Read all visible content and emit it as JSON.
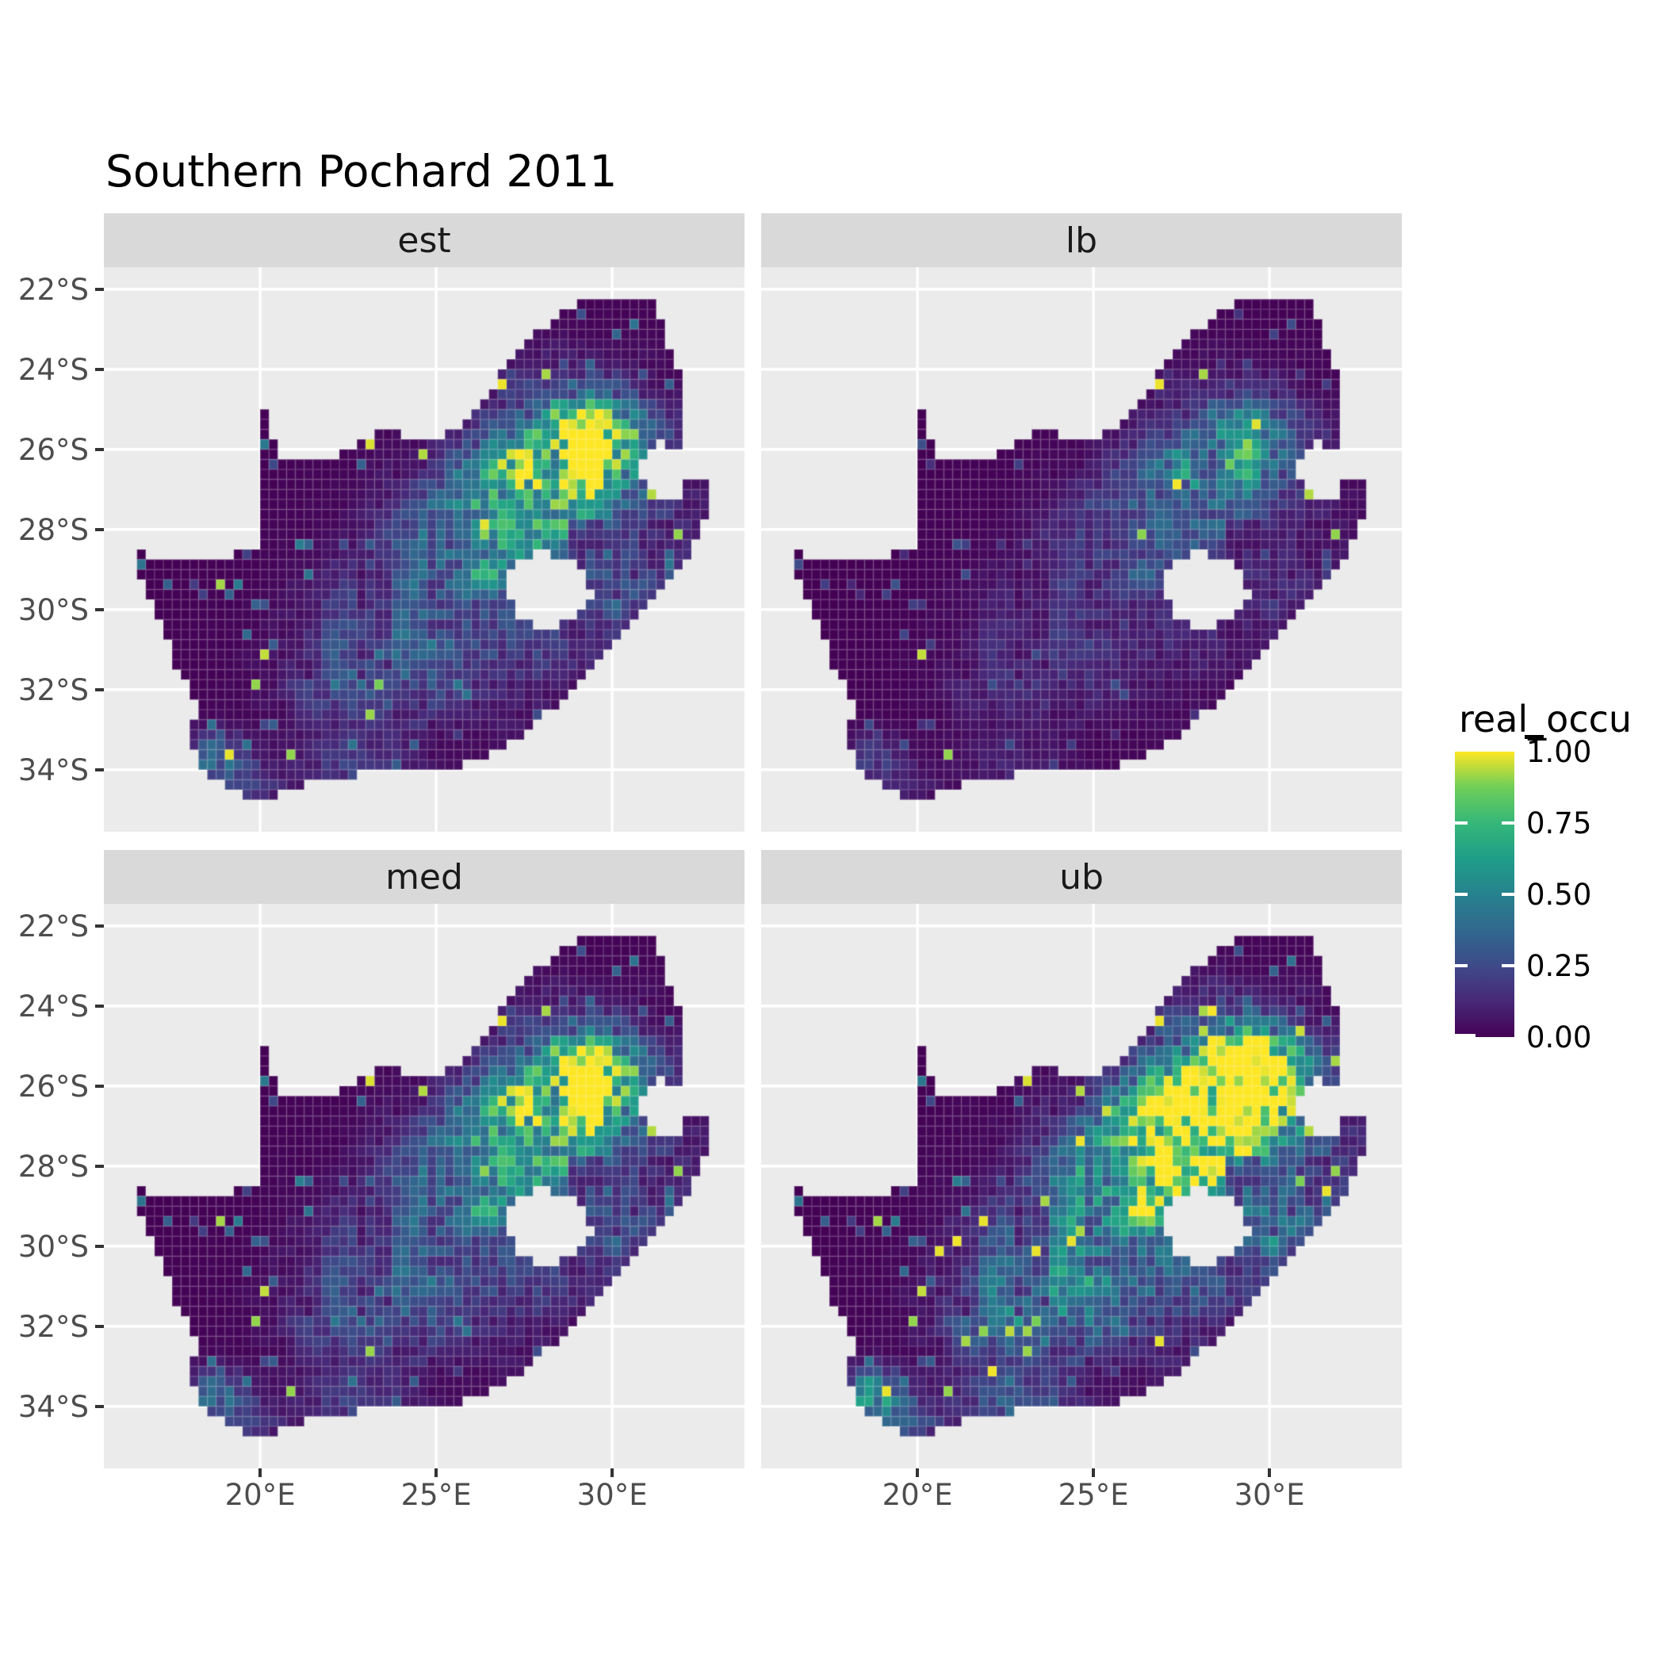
{
  "title": "Southern Pochard 2011",
  "legend": {
    "title": "real_occu",
    "ticks": [
      {
        "label": "1.00",
        "value": 1.0
      },
      {
        "label": "0.75",
        "value": 0.75
      },
      {
        "label": "0.50",
        "value": 0.5
      },
      {
        "label": "0.25",
        "value": 0.25
      },
      {
        "label": "0.00",
        "value": 0.0
      }
    ]
  },
  "x_axis": {
    "ticks": [
      {
        "label": "20°E",
        "lon": 20
      },
      {
        "label": "25°E",
        "lon": 25
      },
      {
        "label": "30°E",
        "lon": 30
      }
    ]
  },
  "y_axis": {
    "ticks": [
      {
        "label": "22°S",
        "lat": 22
      },
      {
        "label": "24°S",
        "lat": 24
      },
      {
        "label": "26°S",
        "lat": 26
      },
      {
        "label": "28°S",
        "lat": 28
      },
      {
        "label": "30°S",
        "lat": 30
      },
      {
        "label": "32°S",
        "lat": 32
      },
      {
        "label": "34°S",
        "lat": 34
      }
    ]
  },
  "chart_data": {
    "type": "heatmap",
    "title": "Southern Pochard 2011",
    "variable": "real_occu",
    "value_range": [
      0,
      1
    ],
    "region": "South Africa",
    "colormap": "viridis",
    "colormap_stops": [
      [
        0.0,
        "#440154"
      ],
      [
        0.125,
        "#482878"
      ],
      [
        0.25,
        "#3e4a89"
      ],
      [
        0.375,
        "#31688e"
      ],
      [
        0.5,
        "#26828e"
      ],
      [
        0.625,
        "#1f9e89"
      ],
      [
        0.75,
        "#35b779"
      ],
      [
        0.875,
        "#6ece58"
      ],
      [
        1.0,
        "#fde725"
      ]
    ],
    "panel_background": "#ebebeb",
    "gridline_color": "#ffffff",
    "strip_background": "#d9d9d9",
    "axis_text_color": "#4d4d4d",
    "cell_size_deg": 0.25,
    "lon_range": [
      15.56,
      33.76
    ],
    "lat_range": [
      -35.55,
      -21.45
    ],
    "facets": [
      {
        "label": "est",
        "gain": 1.0,
        "speckle": 0.018
      },
      {
        "label": "lb",
        "gain": 0.5,
        "speckle": 0.01
      },
      {
        "label": "med",
        "gain": 1.0,
        "speckle": 0.016
      },
      {
        "label": "ub",
        "gain": 1.55,
        "speckle": 0.045
      }
    ],
    "texture": {
      "floor": 0.2,
      "amp": 1.1,
      "pow": 1.2,
      "sparse_p": 0.05,
      "sparse_lo": 0.18,
      "sparse_hi": 0.3
    },
    "hotspots": [
      [
        28.7,
        -26.3,
        1.35,
        0.95,
        0.95
      ],
      [
        29.8,
        -25.6,
        0.9,
        0.7,
        0.45
      ],
      [
        27.0,
        -26.9,
        1.1,
        0.8,
        0.4
      ],
      [
        26.2,
        -28.5,
        1.6,
        1.1,
        0.38
      ],
      [
        28.6,
        -28.3,
        3.0,
        2.4,
        0.26
      ],
      [
        24.3,
        -30.8,
        2.3,
        1.4,
        0.26
      ],
      [
        22.8,
        -31.8,
        1.5,
        1.0,
        0.2
      ],
      [
        18.75,
        -33.7,
        0.6,
        0.45,
        0.5
      ],
      [
        19.4,
        -34.4,
        0.9,
        0.4,
        0.25
      ],
      [
        22.8,
        -33.9,
        1.1,
        0.45,
        0.22
      ],
      [
        30.1,
        -29.6,
        0.85,
        0.65,
        0.3
      ],
      [
        29.0,
        -25.0,
        1.0,
        0.8,
        0.3
      ]
    ],
    "boundary": [
      [
        16.45,
        -28.58
      ],
      [
        17.15,
        -28.72
      ],
      [
        17.75,
        -28.77
      ],
      [
        18.45,
        -28.87
      ],
      [
        19.1,
        -28.73
      ],
      [
        19.6,
        -28.5
      ],
      [
        19.99,
        -28.42
      ],
      [
        19.99,
        -24.77
      ],
      [
        20.6,
        -26.35
      ],
      [
        21.2,
        -26.35
      ],
      [
        21.9,
        -26.25
      ],
      [
        22.6,
        -25.95
      ],
      [
        23.25,
        -25.6
      ],
      [
        23.9,
        -25.6
      ],
      [
        24.6,
        -25.75
      ],
      [
        25.3,
        -25.65
      ],
      [
        25.8,
        -25.3
      ],
      [
        26.1,
        -24.9
      ],
      [
        26.55,
        -24.55
      ],
      [
        26.95,
        -23.85
      ],
      [
        27.4,
        -23.45
      ],
      [
        28.1,
        -22.9
      ],
      [
        28.9,
        -22.45
      ],
      [
        29.45,
        -22.15
      ],
      [
        30.25,
        -22.3
      ],
      [
        31.25,
        -22.38
      ],
      [
        31.55,
        -23.3
      ],
      [
        31.95,
        -24.3
      ],
      [
        32.02,
        -25.25
      ],
      [
        31.97,
        -25.95
      ],
      [
        31.2,
        -25.82
      ],
      [
        30.82,
        -26.3
      ],
      [
        30.85,
        -26.82
      ],
      [
        31.25,
        -27.2
      ],
      [
        31.95,
        -27.3
      ],
      [
        32.1,
        -26.86
      ],
      [
        32.86,
        -26.86
      ],
      [
        32.58,
        -27.95
      ],
      [
        32.2,
        -28.55
      ],
      [
        31.5,
        -29.3
      ],
      [
        30.7,
        -30.25
      ],
      [
        29.95,
        -30.95
      ],
      [
        29.2,
        -31.7
      ],
      [
        28.4,
        -32.4
      ],
      [
        27.6,
        -33.0
      ],
      [
        26.7,
        -33.55
      ],
      [
        25.85,
        -33.85
      ],
      [
        25.0,
        -33.95
      ],
      [
        24.2,
        -34.1
      ],
      [
        23.4,
        -34.05
      ],
      [
        22.55,
        -34.15
      ],
      [
        21.75,
        -34.35
      ],
      [
        20.9,
        -34.4
      ],
      [
        20.15,
        -34.8
      ],
      [
        19.6,
        -34.78
      ],
      [
        19.05,
        -34.35
      ],
      [
        18.8,
        -34.08
      ],
      [
        18.45,
        -34.3
      ],
      [
        18.32,
        -33.9
      ],
      [
        17.95,
        -33.15
      ],
      [
        18.3,
        -32.55
      ],
      [
        17.6,
        -31.35
      ],
      [
        17.0,
        -30.05
      ],
      [
        16.6,
        -29.1
      ]
    ],
    "lesotho_hole": [
      [
        27.0,
        -29.25
      ],
      [
        27.35,
        -28.82
      ],
      [
        27.85,
        -28.6
      ],
      [
        28.45,
        -28.65
      ],
      [
        29.0,
        -28.92
      ],
      [
        29.35,
        -29.3
      ],
      [
        29.45,
        -29.7
      ],
      [
        29.1,
        -30.1
      ],
      [
        28.45,
        -30.42
      ],
      [
        27.75,
        -30.45
      ],
      [
        27.25,
        -30.08
      ],
      [
        27.0,
        -29.6
      ]
    ]
  }
}
